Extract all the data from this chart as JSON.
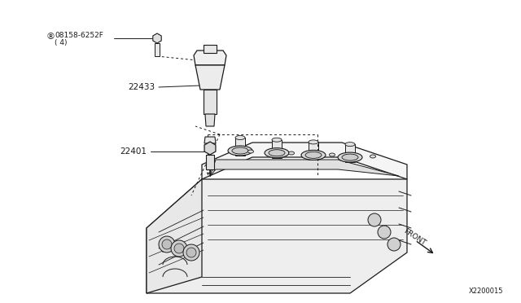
{
  "bg_color": "#ffffff",
  "part_labels": {
    "bolt": "®08158-6252F\n( 4)",
    "coil": "22433",
    "plug": "22401"
  },
  "diagram_id": "X2200015",
  "front_label": "FRONT",
  "line_color": "#1a1a1a",
  "text_color": "#1a1a1a",
  "fig_width": 6.4,
  "fig_height": 3.72,
  "dpi": 100
}
